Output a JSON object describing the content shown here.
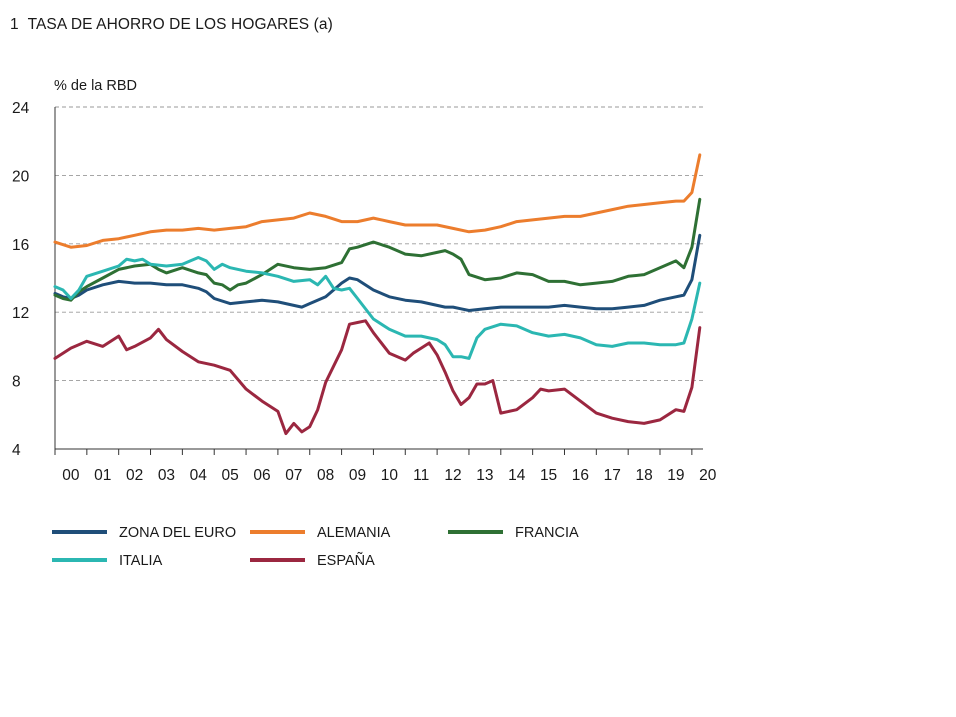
{
  "chart_data": {
    "type": "line",
    "title_number": "1",
    "title": "TASA DE AHORRO DE LOS HOGARES",
    "title_suffix": "(a)",
    "ylabel": "%  de la RBD",
    "ylim": [
      4,
      24
    ],
    "yticks": [
      4,
      8,
      12,
      16,
      20,
      24
    ],
    "grid": true,
    "xlim": [
      2000,
      2020.35
    ],
    "xtick_labels": [
      "00",
      "01",
      "02",
      "03",
      "04",
      "05",
      "06",
      "07",
      "08",
      "09",
      "10",
      "11",
      "12",
      "13",
      "14",
      "15",
      "16",
      "17",
      "18",
      "19",
      "20"
    ],
    "legend_position": "bottom",
    "series": [
      {
        "name": "ZONA DEL EURO",
        "color": "#1f4e79",
        "x": [
          2000,
          2000.25,
          2000.5,
          2000.75,
          2001,
          2001.5,
          2002,
          2002.5,
          2003,
          2003.5,
          2004,
          2004.5,
          2004.75,
          2005,
          2005.5,
          2006,
          2006.5,
          2007,
          2007.5,
          2007.75,
          2008,
          2008.5,
          2009,
          2009.25,
          2009.5,
          2010,
          2010.5,
          2011,
          2011.5,
          2012,
          2012.25,
          2012.5,
          2012.75,
          2013,
          2013.5,
          2014,
          2014.5,
          2015,
          2015.5,
          2016,
          2016.5,
          2017,
          2017.5,
          2018,
          2018.5,
          2019,
          2019.5,
          2019.75,
          2020,
          2020.25
        ],
        "values": [
          13.1,
          12.9,
          12.8,
          13.0,
          13.3,
          13.6,
          13.8,
          13.7,
          13.7,
          13.6,
          13.6,
          13.4,
          13.2,
          12.8,
          12.5,
          12.6,
          12.7,
          12.6,
          12.4,
          12.3,
          12.5,
          12.9,
          13.7,
          14.0,
          13.9,
          13.3,
          12.9,
          12.7,
          12.6,
          12.4,
          12.3,
          12.3,
          12.2,
          12.1,
          12.2,
          12.3,
          12.3,
          12.3,
          12.3,
          12.4,
          12.3,
          12.2,
          12.2,
          12.3,
          12.4,
          12.7,
          12.9,
          13.0,
          13.9,
          16.5
        ]
      },
      {
        "name": "ALEMANIA",
        "color": "#ec7d2d",
        "x": [
          2000,
          2000.5,
          2001,
          2001.5,
          2002,
          2002.5,
          2003,
          2003.5,
          2004,
          2004.5,
          2005,
          2005.5,
          2006,
          2006.5,
          2007,
          2007.5,
          2008,
          2008.5,
          2009,
          2009.5,
          2010,
          2010.5,
          2011,
          2011.5,
          2012,
          2012.5,
          2013,
          2013.5,
          2014,
          2014.5,
          2015,
          2015.5,
          2016,
          2016.5,
          2017,
          2017.5,
          2018,
          2018.5,
          2019,
          2019.5,
          2019.75,
          2020,
          2020.25
        ],
        "values": [
          16.1,
          15.8,
          15.9,
          16.2,
          16.3,
          16.5,
          16.7,
          16.8,
          16.8,
          16.9,
          16.8,
          16.9,
          17.0,
          17.3,
          17.4,
          17.5,
          17.8,
          17.6,
          17.3,
          17.3,
          17.5,
          17.3,
          17.1,
          17.1,
          17.1,
          16.9,
          16.7,
          16.8,
          17.0,
          17.3,
          17.4,
          17.5,
          17.6,
          17.6,
          17.8,
          18.0,
          18.2,
          18.3,
          18.4,
          18.5,
          18.5,
          19.0,
          21.2
        ]
      },
      {
        "name": "FRANCIA",
        "color": "#2e7034",
        "x": [
          2000,
          2000.25,
          2000.5,
          2000.75,
          2001,
          2001.5,
          2002,
          2002.5,
          2003,
          2003.25,
          2003.5,
          2004,
          2004.5,
          2004.75,
          2005,
          2005.25,
          2005.5,
          2005.75,
          2006,
          2006.5,
          2007,
          2007.5,
          2008,
          2008.5,
          2009,
          2009.25,
          2009.5,
          2010,
          2010.5,
          2011,
          2011.5,
          2012,
          2012.25,
          2012.5,
          2012.75,
          2013,
          2013.5,
          2014,
          2014.5,
          2015,
          2015.5,
          2016,
          2016.5,
          2017,
          2017.5,
          2018,
          2018.5,
          2019,
          2019.5,
          2019.75,
          2020,
          2020.25
        ],
        "values": [
          13.0,
          12.8,
          12.7,
          13.2,
          13.5,
          14.0,
          14.5,
          14.7,
          14.8,
          14.5,
          14.3,
          14.6,
          14.3,
          14.2,
          13.7,
          13.6,
          13.3,
          13.6,
          13.7,
          14.2,
          14.8,
          14.6,
          14.5,
          14.6,
          14.9,
          15.7,
          15.8,
          16.1,
          15.8,
          15.4,
          15.3,
          15.5,
          15.6,
          15.4,
          15.1,
          14.2,
          13.9,
          14.0,
          14.3,
          14.2,
          13.8,
          13.8,
          13.6,
          13.7,
          13.8,
          14.1,
          14.2,
          14.6,
          15.0,
          14.6,
          15.8,
          18.6
        ]
      },
      {
        "name": "ITALIA",
        "color": "#2bb7b2",
        "x": [
          2000,
          2000.25,
          2000.5,
          2000.75,
          2001,
          2001.5,
          2002,
          2002.25,
          2002.5,
          2002.75,
          2003,
          2003.5,
          2004,
          2004.25,
          2004.5,
          2004.75,
          2005,
          2005.25,
          2005.5,
          2006,
          2006.5,
          2007,
          2007.5,
          2008,
          2008.25,
          2008.5,
          2008.75,
          2009,
          2009.25,
          2009.5,
          2010,
          2010.5,
          2011,
          2011.5,
          2012,
          2012.25,
          2012.5,
          2012.75,
          2013,
          2013.25,
          2013.5,
          2014,
          2014.5,
          2015,
          2015.5,
          2016,
          2016.5,
          2017,
          2017.5,
          2018,
          2018.5,
          2019,
          2019.5,
          2019.75,
          2020,
          2020.25
        ],
        "values": [
          13.5,
          13.3,
          12.8,
          13.3,
          14.1,
          14.4,
          14.7,
          15.1,
          15.0,
          15.1,
          14.8,
          14.7,
          14.8,
          15.0,
          15.2,
          15.0,
          14.5,
          14.8,
          14.6,
          14.4,
          14.3,
          14.1,
          13.8,
          13.9,
          13.6,
          14.1,
          13.4,
          13.3,
          13.4,
          12.8,
          11.6,
          11.0,
          10.6,
          10.6,
          10.4,
          10.1,
          9.4,
          9.4,
          9.3,
          10.5,
          11.0,
          11.3,
          11.2,
          10.8,
          10.6,
          10.7,
          10.5,
          10.1,
          10.0,
          10.2,
          10.2,
          10.1,
          10.1,
          10.2,
          11.6,
          13.7
        ]
      },
      {
        "name": "ESPAÑA",
        "color": "#9b2740",
        "x": [
          2000,
          2000.5,
          2001,
          2001.5,
          2002,
          2002.25,
          2002.5,
          2003,
          2003.25,
          2003.5,
          2004,
          2004.5,
          2005,
          2005.5,
          2006,
          2006.5,
          2007,
          2007.25,
          2007.5,
          2007.75,
          2008,
          2008.25,
          2008.5,
          2009,
          2009.25,
          2009.5,
          2009.75,
          2010,
          2010.5,
          2011,
          2011.25,
          2011.5,
          2011.75,
          2012,
          2012.25,
          2012.5,
          2012.75,
          2013,
          2013.25,
          2013.5,
          2013.75,
          2014,
          2014.5,
          2015,
          2015.25,
          2015.5,
          2016,
          2016.5,
          2017,
          2017.5,
          2018,
          2018.5,
          2019,
          2019.5,
          2019.75,
          2020,
          2020.25
        ],
        "values": [
          9.3,
          9.9,
          10.3,
          10.0,
          10.6,
          9.8,
          10.0,
          10.5,
          11.0,
          10.4,
          9.7,
          9.1,
          8.9,
          8.6,
          7.5,
          6.8,
          6.2,
          4.9,
          5.5,
          5.0,
          5.3,
          6.3,
          7.9,
          9.8,
          11.3,
          11.4,
          11.5,
          10.8,
          9.6,
          9.2,
          9.6,
          9.9,
          10.2,
          9.5,
          8.5,
          7.4,
          6.6,
          7.0,
          7.8,
          7.8,
          8.0,
          6.1,
          6.3,
          7.0,
          7.5,
          7.4,
          7.5,
          6.8,
          6.1,
          5.8,
          5.6,
          5.5,
          5.7,
          6.3,
          6.2,
          7.6,
          11.1
        ]
      }
    ]
  }
}
